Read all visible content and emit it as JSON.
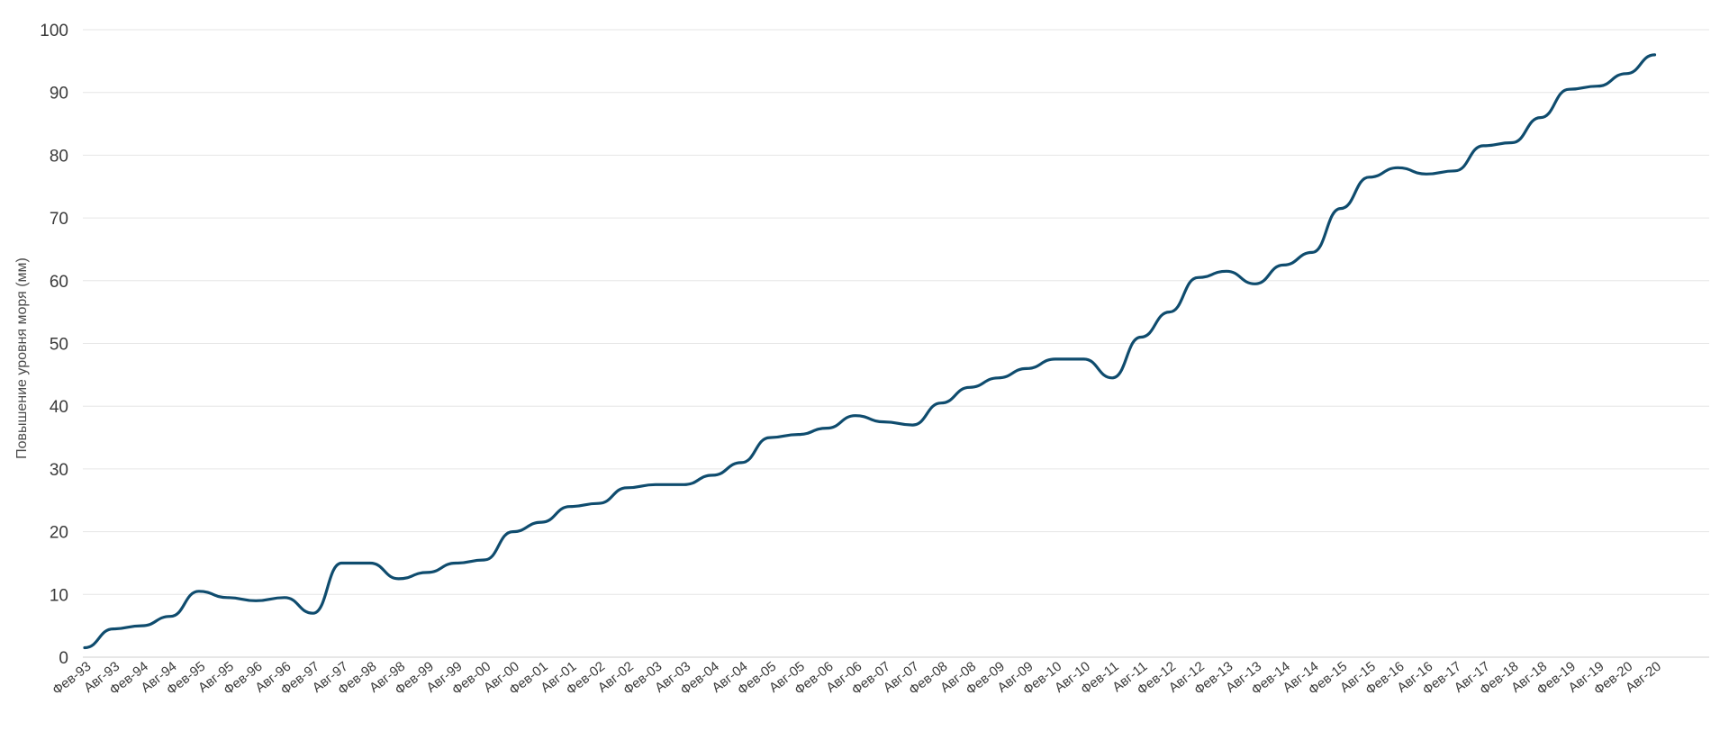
{
  "chart_data": {
    "type": "line",
    "ylabel": "Повышение уровня моря (мм)",
    "ylim": [
      0,
      100
    ],
    "y_ticks": [
      0,
      10,
      20,
      30,
      40,
      50,
      60,
      70,
      80,
      90,
      100
    ],
    "grid": true,
    "x_ticks": [
      "Фев-93",
      "Авг-93",
      "Фев-94",
      "Авг-94",
      "Фев-95",
      "Авг-95",
      "Фев-96",
      "Авг-96",
      "Фев-97",
      "Авг-97",
      "Фев-98",
      "Авг-98",
      "Фев-99",
      "Авг-99",
      "Фев-00",
      "Авг-00",
      "Фев-01",
      "Авг-01",
      "Фев-02",
      "Авг-02",
      "Фев-03",
      "Авг-03",
      "Фев-04",
      "Авг-04",
      "Фев-05",
      "Авг-05",
      "Фев-06",
      "Авг-06",
      "Фев-07",
      "Авг-07",
      "Фев-08",
      "Авг-08",
      "Фев-09",
      "Авг-09",
      "Фев-10",
      "Авг-10",
      "Фев-11",
      "Авг-11",
      "Фев-12",
      "Авг-12",
      "Фев-13",
      "Авг-13",
      "Фев-14",
      "Авг-14",
      "Фев-15",
      "Авг-15",
      "Фев-16",
      "Авг-16",
      "Фев-17",
      "Авг-17",
      "Фев-18",
      "Авг-18",
      "Фев-19",
      "Авг-19",
      "Фев-20",
      "Авг-20"
    ],
    "series": [
      {
        "color": "#0f4c6e",
        "x": [
          "Фев-93",
          "Авг-93",
          "Фев-94",
          "Авг-94",
          "Фев-95",
          "Авг-95",
          "Фев-96",
          "Авг-96",
          "Фев-97",
          "Авг-97",
          "Фев-98",
          "Авг-98",
          "Фев-99",
          "Авг-99",
          "Фев-00",
          "Авг-00",
          "Фев-01",
          "Авг-01",
          "Фев-02",
          "Авг-02",
          "Фев-03",
          "Авг-03",
          "Фев-04",
          "Авг-04",
          "Фев-05",
          "Авг-05",
          "Фев-06",
          "Авг-06",
          "Фев-07",
          "Авг-07",
          "Фев-08",
          "Авг-08",
          "Фев-09",
          "Авг-09",
          "Фев-10",
          "Авг-10",
          "Фев-11",
          "Авг-11",
          "Фев-12",
          "Авг-12",
          "Фев-13",
          "Авг-13",
          "Фев-14",
          "Авг-14",
          "Фев-15",
          "Авг-15",
          "Фев-16",
          "Авг-16",
          "Фев-17",
          "Авг-17",
          "Фев-18",
          "Авг-18",
          "Фев-19",
          "Авг-19",
          "Фев-20",
          "Авг-20"
        ],
        "values": [
          1.5,
          4.5,
          5.0,
          6.5,
          10.5,
          9.5,
          9.0,
          9.5,
          7.0,
          15.0,
          15.0,
          12.5,
          13.5,
          15.0,
          15.5,
          20.0,
          21.5,
          24.0,
          24.5,
          27.0,
          27.5,
          27.5,
          29.0,
          31.0,
          35.0,
          35.5,
          36.5,
          38.5,
          37.5,
          37.0,
          40.5,
          43.0,
          44.5,
          46.0,
          47.5,
          47.5,
          44.5,
          51.0,
          55.0,
          60.5,
          61.5,
          59.5,
          62.5,
          64.5,
          71.5,
          76.5,
          78.0,
          77.0,
          77.5,
          81.5,
          82.0,
          86.0,
          90.5,
          91.0,
          93.0,
          96.0
        ]
      }
    ]
  }
}
